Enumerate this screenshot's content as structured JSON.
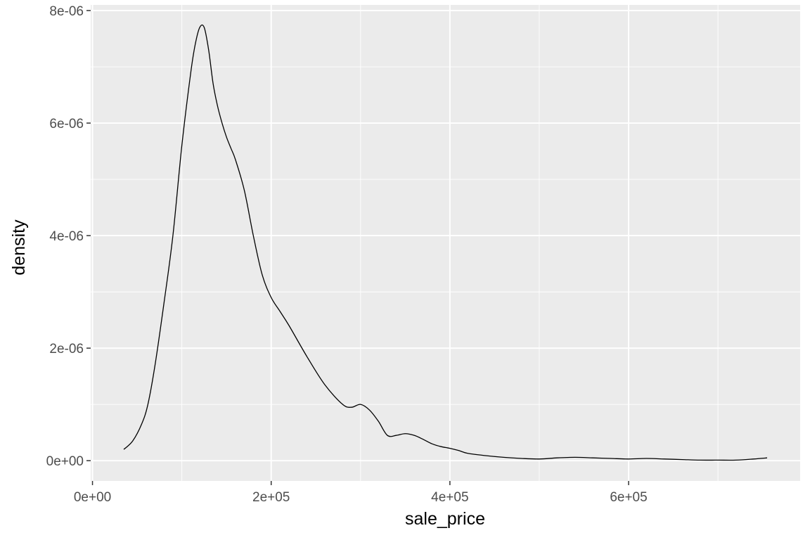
{
  "chart_data": {
    "type": "line",
    "title": "",
    "xlabel": "sale_price",
    "ylabel": "density",
    "xlim": [
      -2000,
      792000
    ],
    "ylim": [
      -3.6e-07,
      8.1e-06
    ],
    "x_ticks": [
      {
        "value": 0,
        "label": "0e+00"
      },
      {
        "value": 200000,
        "label": "2e+05"
      },
      {
        "value": 400000,
        "label": "4e+05"
      },
      {
        "value": 600000,
        "label": "6e+05"
      }
    ],
    "x_minor_ticks": [
      100000,
      300000,
      500000,
      700000
    ],
    "y_ticks": [
      {
        "value": 0,
        "label": "0e+00"
      },
      {
        "value": 2e-06,
        "label": "2e-06"
      },
      {
        "value": 4e-06,
        "label": "4e-06"
      },
      {
        "value": 6e-06,
        "label": "6e-06"
      },
      {
        "value": 8e-06,
        "label": "8e-06"
      }
    ],
    "y_minor_ticks": [
      1e-06,
      3e-06,
      5e-06,
      7e-06
    ],
    "grid": true,
    "colors": {
      "panel": "#ebebeb",
      "grid": "#ffffff",
      "line": "#000000",
      "tick": "#333333"
    },
    "series": [
      {
        "x": [
          35000,
          45000,
          55000,
          62000,
          70000,
          80000,
          90000,
          100000,
          110000,
          115000,
          120000,
          125000,
          130000,
          135000,
          140000,
          145000,
          150000,
          155000,
          160000,
          170000,
          180000,
          190000,
          200000,
          210000,
          220000,
          240000,
          260000,
          280000,
          290000,
          300000,
          310000,
          320000,
          330000,
          340000,
          350000,
          360000,
          370000,
          380000,
          390000,
          400000,
          410000,
          420000,
          440000,
          460000,
          480000,
          500000,
          520000,
          540000,
          560000,
          580000,
          600000,
          620000,
          640000,
          660000,
          680000,
          700000,
          720000,
          740000,
          755000
        ],
        "y": [
          2e-07,
          3.5e-07,
          6.5e-07,
          1e-06,
          1.7e-06,
          2.8e-06,
          4e-06,
          5.6e-06,
          6.9e-06,
          7.4e-06,
          7.7e-06,
          7.7e-06,
          7.3e-06,
          6.7e-06,
          6.3e-06,
          6e-06,
          5.75e-06,
          5.55e-06,
          5.35e-06,
          4.8e-06,
          4e-06,
          3.3e-06,
          2.9e-06,
          2.65e-06,
          2.4e-06,
          1.85e-06,
          1.35e-06,
          1e-06,
          9.5e-07,
          1e-06,
          9e-07,
          7e-07,
          4.5e-07,
          4.5e-07,
          4.8e-07,
          4.5e-07,
          3.8e-07,
          3e-07,
          2.5e-07,
          2.2e-07,
          1.8e-07,
          1.3e-07,
          9e-08,
          6e-08,
          4e-08,
          3e-08,
          5e-08,
          6e-08,
          5e-08,
          4e-08,
          3e-08,
          4e-08,
          3e-08,
          2e-08,
          1e-08,
          1e-08,
          1e-08,
          3e-08,
          5e-08
        ]
      }
    ]
  }
}
